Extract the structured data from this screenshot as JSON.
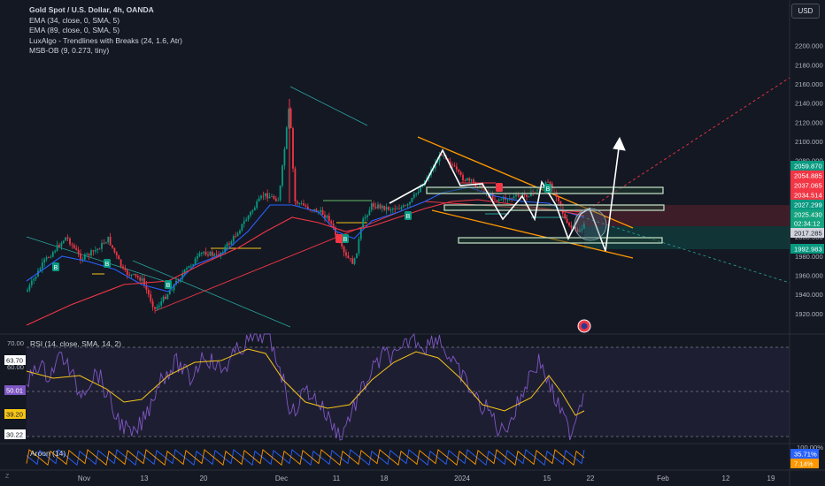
{
  "legend": {
    "title": "Gold Spot / U.S. Dollar, 4h, OANDA",
    "ema1": "EMA (34, close, 0, SMA, 5)",
    "ema2": "EMA (89, close, 0, SMA, 5)",
    "luxalgo": "LuxAlgo - Trendlines with Breaks (24, 1.6, Atr)",
    "msb": "MSB-OB (9, 0.273, tiny)"
  },
  "currency_button": "USD",
  "rsi_label": "RSI (14, close, SMA, 14, 2)",
  "aroon_label": "Aroon (14)",
  "z_label": "Z",
  "price_axis": {
    "ticks": [
      "2200.000",
      "2180.000",
      "2160.000",
      "2140.000",
      "2120.000",
      "2100.000",
      "2080.000",
      "2060.000",
      "2040.000",
      "2020.000",
      "2000.000",
      "1980.000",
      "1960.000",
      "1940.000",
      "1920.000"
    ],
    "badges": [
      {
        "text": "2059.870",
        "color": "#089981"
      },
      {
        "text": "2054.885",
        "color": "#f23645"
      },
      {
        "text": "2037.065",
        "color": "#f23645"
      },
      {
        "text": "2034.514",
        "color": "#f23645"
      },
      {
        "text": "2027.299",
        "color": "#089981"
      },
      {
        "text": "2025.430",
        "color": "#14a37f"
      },
      {
        "text": "02:34:12",
        "color": "#14a37f"
      },
      {
        "text": "2017.285",
        "color": "#d1d4dc"
      },
      {
        "text": "1992.983",
        "color": "#089981"
      }
    ]
  },
  "rsi_axis": {
    "ticks": [
      "70.00",
      "60.00"
    ],
    "badges": [
      {
        "text": "63.70",
        "color": "#ffffff"
      },
      {
        "text": "50.01",
        "color": "#7e57c2"
      },
      {
        "text": "39.20",
        "color": "#f5c518"
      },
      {
        "text": "30.22",
        "color": "#ffffff"
      }
    ]
  },
  "aroon_axis": {
    "ticks": [
      "100.00%"
    ],
    "badges": [
      {
        "text": "35.71%",
        "color": "#2962ff"
      },
      {
        "text": "7.14%",
        "color": "#ff9800"
      }
    ]
  },
  "time_axis": [
    "Nov",
    "13",
    "20",
    "Dec",
    "11",
    "18",
    "2024",
    "15",
    "22",
    "Feb",
    "12",
    "19"
  ],
  "signal_labels": [
    "B",
    "B",
    "B",
    "B",
    "B",
    "B"
  ],
  "colors": {
    "background": "#141823",
    "up": "#089981",
    "down": "#f23645",
    "ema_fast": "#2962ff",
    "ema_slow": "#f23645",
    "rsi": "#7e57c2",
    "rsi_ma": "#f5c518",
    "aroon_up": "#ff9800",
    "aroon_down": "#2962ff"
  }
}
